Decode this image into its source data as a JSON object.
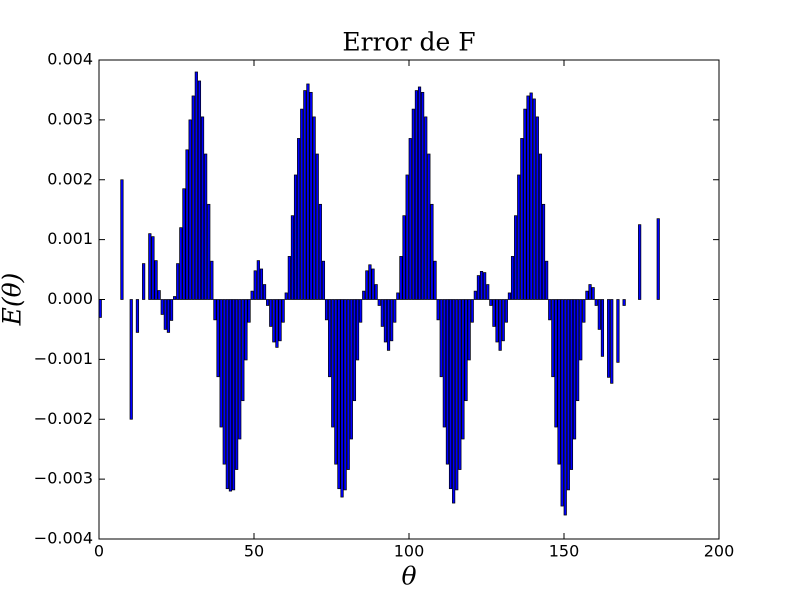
{
  "chart_data": {
    "type": "bar",
    "title": "Error de F",
    "xlabel": "θ",
    "ylabel": "E(θ)",
    "color": "#0000ff",
    "edgecolor": "#000000",
    "x": [
      0,
      7,
      10,
      12,
      14,
      16,
      17,
      18,
      19,
      20,
      21,
      22,
      23,
      24,
      25,
      26,
      27,
      28,
      29,
      30,
      31,
      32,
      33,
      34,
      35,
      36,
      37,
      38,
      39,
      40,
      41,
      42,
      43,
      44,
      45,
      46,
      47,
      48,
      49,
      50,
      51,
      52,
      53,
      54,
      55,
      56,
      57,
      58,
      59,
      60,
      61,
      62,
      63,
      64,
      65,
      66,
      67,
      68,
      69,
      70,
      71,
      72,
      73,
      74,
      75,
      76,
      77,
      78,
      79,
      80,
      81,
      82,
      83,
      84,
      85,
      86,
      87,
      88,
      89,
      90,
      91,
      92,
      93,
      94,
      95,
      96,
      97,
      98,
      99,
      100,
      101,
      102,
      103,
      104,
      105,
      106,
      107,
      108,
      109,
      110,
      111,
      112,
      113,
      114,
      115,
      116,
      117,
      118,
      119,
      120,
      121,
      122,
      123,
      124,
      125,
      126,
      127,
      128,
      129,
      130,
      131,
      132,
      133,
      134,
      135,
      136,
      137,
      138,
      139,
      140,
      141,
      142,
      143,
      144,
      145,
      146,
      147,
      148,
      149,
      150,
      151,
      152,
      153,
      154,
      155,
      156,
      157,
      158,
      159,
      160,
      161,
      162,
      164,
      165,
      167,
      169,
      174,
      180
    ],
    "values": [
      -0.0003,
      0.002,
      -0.002,
      -0.00055,
      0.0006,
      0.0011,
      0.00105,
      0.00065,
      0.00015,
      -0.00025,
      -0.0005,
      -0.00055,
      -0.00035,
      5e-05,
      0.0006,
      0.0012,
      0.00185,
      0.0025,
      0.003,
      0.0034,
      0.0038,
      0.00365,
      0.00305,
      0.00243,
      0.00159,
      0.00064,
      -0.00034,
      -0.00129,
      -0.00213,
      -0.00275,
      -0.00316,
      -0.0032,
      -0.00318,
      -0.00284,
      -0.00233,
      -0.00169,
      -0.00101,
      -0.00038,
      0.00014,
      0.00048,
      0.00065,
      0.00051,
      0.00025,
      -0.0001,
      -0.00045,
      -0.00071,
      -0.0008,
      -0.00069,
      -0.00038,
      0.00011,
      0.00072,
      0.0014,
      0.00208,
      0.00269,
      0.00318,
      0.00349,
      0.0036,
      0.00346,
      0.00305,
      0.00243,
      0.00159,
      0.00064,
      -0.00034,
      -0.00129,
      -0.00213,
      -0.00275,
      -0.00316,
      -0.0033,
      -0.00318,
      -0.00284,
      -0.00233,
      -0.00169,
      -0.00101,
      -0.00038,
      0.00014,
      0.00048,
      0.00058,
      0.00051,
      0.00025,
      -0.0001,
      -0.00045,
      -0.00071,
      -0.00085,
      -0.00069,
      -0.00038,
      0.00011,
      0.00072,
      0.0014,
      0.00208,
      0.00269,
      0.00318,
      0.00349,
      0.00355,
      0.00346,
      0.00305,
      0.00243,
      0.00159,
      0.00064,
      -0.00034,
      -0.00129,
      -0.00213,
      -0.00275,
      -0.00316,
      -0.0034,
      -0.00318,
      -0.00284,
      -0.00233,
      -0.00169,
      -0.00101,
      -0.00038,
      0.00014,
      0.0004,
      0.00047,
      0.00045,
      0.00025,
      -0.0001,
      -0.00045,
      -0.00071,
      -0.00085,
      -0.00069,
      -0.00038,
      0.00011,
      0.00072,
      0.0014,
      0.00208,
      0.00269,
      0.00318,
      0.0034,
      0.00345,
      0.00335,
      0.00305,
      0.00243,
      0.00159,
      0.00064,
      -0.00034,
      -0.00129,
      -0.00213,
      -0.00275,
      -0.00345,
      -0.0036,
      -0.00318,
      -0.00284,
      -0.00233,
      -0.00169,
      -0.00101,
      -0.00038,
      0.00014,
      0.00025,
      0.0002,
      -0.0001,
      -0.0005,
      -0.00095,
      -0.0013,
      -0.0014,
      -0.00105,
      -0.0001,
      0.00125,
      0.00135
    ],
    "bar_width": 0.8,
    "xlim": [
      0,
      200
    ],
    "xticks": [
      0,
      50,
      100,
      150,
      200
    ],
    "ylim": [
      -0.004,
      0.004
    ],
    "yticks": [
      {
        "value": -0.004,
        "label": "−0.004"
      },
      {
        "value": -0.003,
        "label": "−0.003"
      },
      {
        "value": -0.002,
        "label": "−0.002"
      },
      {
        "value": -0.001,
        "label": "−0.001"
      },
      {
        "value": 0,
        "label": "0.000"
      },
      {
        "value": 0.001,
        "label": "0.001"
      },
      {
        "value": 0.002,
        "label": "0.002"
      },
      {
        "value": 0.003,
        "label": "0.003"
      },
      {
        "value": 0.004,
        "label": "0.004"
      }
    ],
    "grid": false
  }
}
